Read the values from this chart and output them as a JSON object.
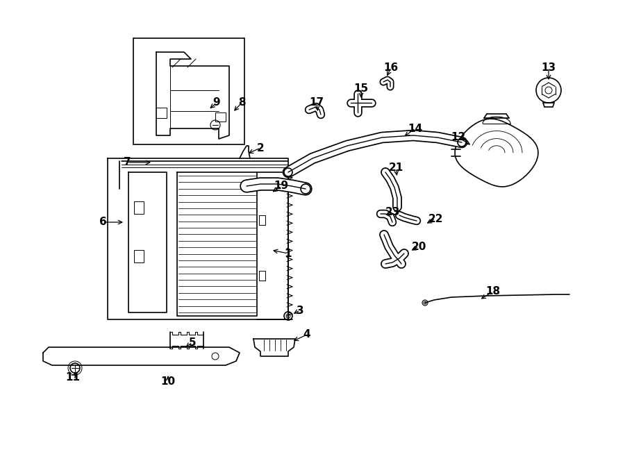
{
  "bg_color": "#ffffff",
  "line_color": "#000000",
  "lw": 1.2,
  "lw_thick": 2.0,
  "lw_hose": 6.0,
  "parts_labels": {
    "1": [
      415,
      365,
      390,
      360
    ],
    "2": [
      375,
      213,
      355,
      222
    ],
    "3": [
      432,
      447,
      420,
      453
    ],
    "4": [
      442,
      482,
      420,
      492
    ],
    "5": [
      277,
      493,
      265,
      502
    ],
    "6": [
      148,
      320,
      180,
      320
    ],
    "7": [
      183,
      234,
      220,
      234
    ],
    "8": [
      348,
      148,
      335,
      162
    ],
    "9": [
      312,
      148,
      300,
      158
    ],
    "10": [
      242,
      550,
      242,
      538
    ],
    "11": [
      105,
      543,
      112,
      535
    ],
    "12": [
      660,
      198,
      680,
      210
    ],
    "13": [
      790,
      98,
      790,
      118
    ],
    "14": [
      598,
      185,
      580,
      198
    ],
    "15": [
      520,
      128,
      520,
      144
    ],
    "16": [
      563,
      97,
      556,
      112
    ],
    "17": [
      456,
      148,
      458,
      163
    ],
    "18": [
      710,
      420,
      690,
      432
    ],
    "19": [
      405,
      268,
      390,
      278
    ],
    "20": [
      603,
      355,
      590,
      362
    ],
    "21": [
      570,
      242,
      572,
      256
    ],
    "22": [
      627,
      315,
      612,
      323
    ],
    "23": [
      565,
      305,
      558,
      313
    ]
  }
}
